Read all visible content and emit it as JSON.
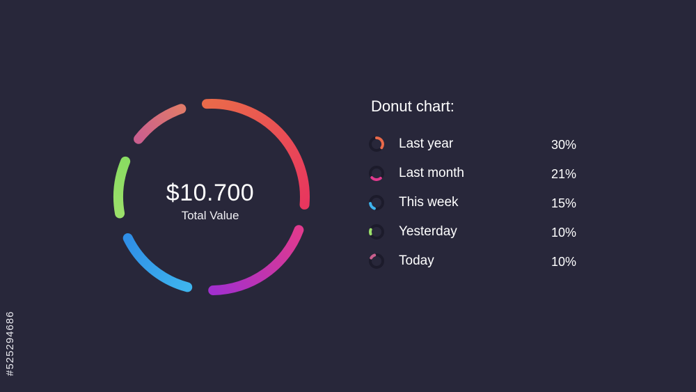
{
  "chart_data": {
    "type": "pie",
    "title": "Donut chart:",
    "center_value": "$10.700",
    "center_label": "Total Value",
    "categories": [
      "Last year",
      "Last month",
      "This week",
      "Yesterday",
      "Today"
    ],
    "values": [
      30,
      21,
      15,
      10,
      10
    ],
    "value_labels": [
      "30%",
      "21%",
      "15%",
      "10%",
      "10%"
    ],
    "legend_placement": "right"
  },
  "colors": {
    "background": "#28273a",
    "track": "#1c1b2b",
    "segments": [
      [
        "#ea6a4a",
        "#e8365e"
      ],
      [
        "#e03a8e",
        "#a22fce"
      ],
      [
        "#3eb4ee",
        "#2f8ee6"
      ],
      [
        "#9be06a",
        "#8adc62"
      ],
      [
        "#ca5f8e",
        "#e07a6a"
      ]
    ]
  },
  "watermark": "#525294686"
}
